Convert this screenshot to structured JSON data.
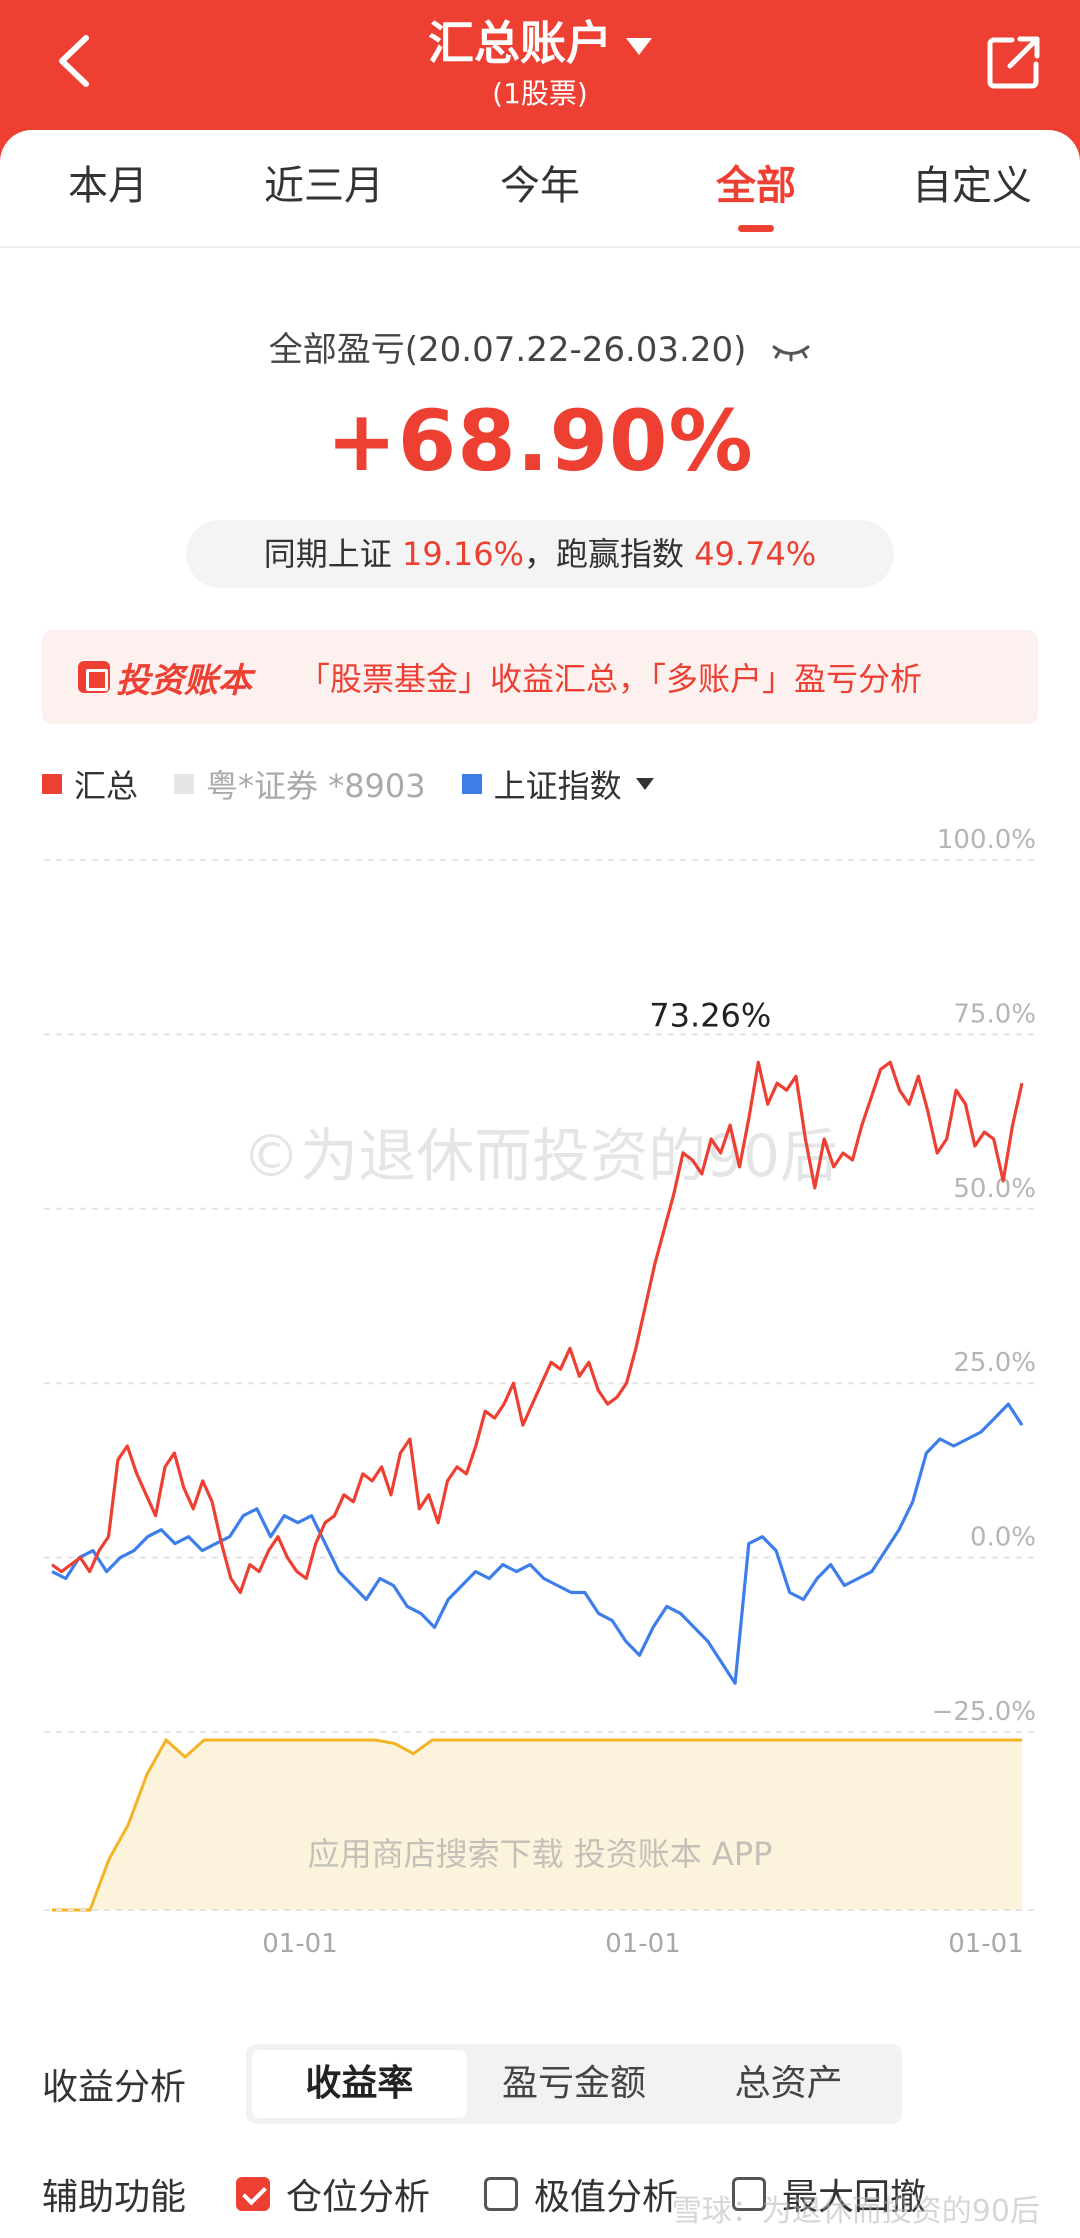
{
  "header": {
    "title": "汇总账户",
    "subtitle": "(1股票)"
  },
  "tabs": [
    {
      "label": "本月",
      "active": false
    },
    {
      "label": "近三月",
      "active": false
    },
    {
      "label": "今年",
      "active": false
    },
    {
      "label": "全部",
      "active": true
    },
    {
      "label": "自定义",
      "active": false
    }
  ],
  "summary": {
    "label": "全部盈亏(20.07.22-26.03.20)",
    "value": "+68.90%",
    "compare_prefix": "同期上证",
    "compare_index_value": "19.16%",
    "compare_mid": "，跑赢指数",
    "compare_beat_value": "49.74%"
  },
  "promo": {
    "logo_text": "投资账本",
    "text": "「股票基金」收益汇总，「多账户」盈亏分析"
  },
  "legend": [
    {
      "label": "汇总",
      "color": "#ee3f33"
    },
    {
      "label": "粤*证券 *8903",
      "color": "#e6e6e6"
    },
    {
      "label": "上证指数",
      "color": "#3d7eea"
    }
  ],
  "watermark": {
    "text": "©为退休而投资的90后",
    "ad_text": "应用商店搜索下载",
    "ad_logo": "投资账本",
    "ad_suffix": "APP"
  },
  "chart_data": {
    "type": "line",
    "x_tick_labels": [
      "01-01",
      "01-01",
      "01-01"
    ],
    "y_tick_labels": [
      "100.0%",
      "75.0%",
      "50.0%",
      "25.0%",
      "0.0%",
      "−25.0%"
    ],
    "ylim": [
      -25,
      100
    ],
    "peak_label": "73.26%",
    "colors": {
      "total": "#ee3f33",
      "index": "#3d7eea",
      "position": "#f5b324"
    },
    "series": [
      {
        "name": "汇总",
        "values": [
          -1,
          -2,
          -1,
          0,
          -2,
          1,
          3,
          14,
          16,
          12,
          9,
          6,
          13,
          15,
          10,
          7,
          11,
          8,
          2,
          -3,
          -5,
          -1,
          -2,
          1,
          3,
          0,
          -2,
          -3,
          2,
          5,
          6,
          9,
          8,
          12,
          11,
          13,
          9,
          15,
          17,
          7,
          9,
          5,
          11,
          13,
          12,
          16,
          21,
          20,
          22,
          25,
          19,
          22,
          25,
          28,
          27,
          30,
          26,
          28,
          24,
          22,
          23,
          25,
          30,
          36,
          42,
          47,
          52,
          58,
          57,
          55,
          60,
          58,
          62,
          56,
          63,
          71,
          65,
          68,
          67,
          69,
          60,
          53,
          60,
          56,
          58,
          57,
          62,
          66,
          70,
          71,
          67,
          65,
          69,
          64,
          58,
          60,
          67,
          65,
          59,
          61,
          60,
          54,
          62,
          68
        ]
      },
      {
        "name": "上证指数",
        "values": [
          -2,
          -3,
          0,
          1,
          -2,
          0,
          1,
          3,
          4,
          2,
          3,
          1,
          2,
          3,
          6,
          7,
          3,
          6,
          5,
          6,
          2,
          -2,
          -4,
          -6,
          -3,
          -4,
          -7,
          -8,
          -10,
          -6,
          -4,
          -2,
          -3,
          -1,
          -2,
          -1,
          -3,
          -4,
          -5,
          -5,
          -8,
          -9,
          -12,
          -14,
          -10,
          -7,
          -8,
          -10,
          -12,
          -15,
          -18,
          2,
          3,
          1,
          -5,
          -6,
          -3,
          -1,
          -4,
          -3,
          -2,
          1,
          4,
          8,
          15,
          17,
          16,
          17,
          18,
          20,
          22,
          19
        ]
      },
      {
        "name": "仓位",
        "values": [
          0,
          0,
          0,
          0.3,
          0.5,
          0.8,
          1,
          0.9,
          1,
          1,
          1,
          1,
          1,
          1,
          1,
          1,
          1,
          1,
          0.98,
          0.92,
          1,
          1,
          1,
          1,
          1,
          1,
          1,
          1,
          1,
          1,
          1,
          1,
          1,
          1,
          1,
          1,
          1,
          1,
          1,
          1,
          1,
          1,
          1,
          1,
          1,
          1,
          1,
          1,
          1,
          1,
          1,
          1
        ]
      }
    ]
  },
  "analysis": {
    "label": "收益分析",
    "options": [
      {
        "label": "收益率",
        "active": true
      },
      {
        "label": "盈亏金额",
        "active": false
      },
      {
        "label": "总资产",
        "active": false
      }
    ]
  },
  "aux": {
    "label": "辅助功能",
    "options": [
      {
        "label": "仓位分析",
        "checked": true
      },
      {
        "label": "极值分析",
        "checked": false
      },
      {
        "label": "最大回撤",
        "checked": false
      }
    ]
  },
  "footer_watermark": "雪球：为退休而投资的90后"
}
